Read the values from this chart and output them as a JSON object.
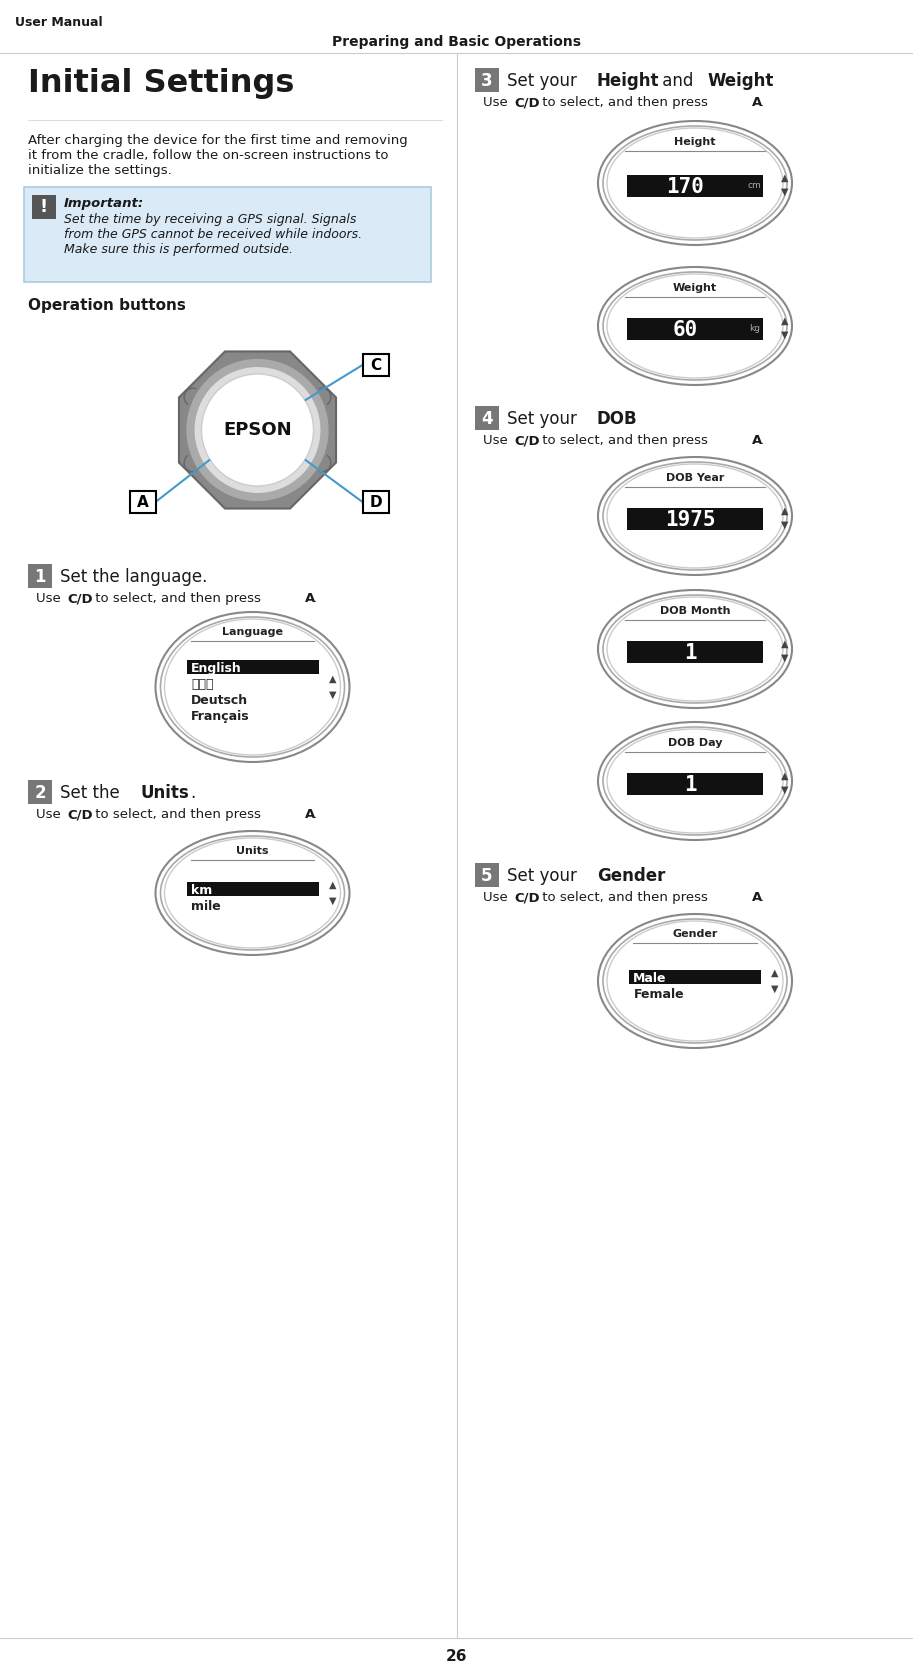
{
  "page_title_left": "User Manual",
  "page_title_center": "Preparing and Basic Operations",
  "page_number": "26",
  "section_title": "Initial Settings",
  "intro_lines": [
    "After charging the device for the first time and removing",
    "it from the cradle, follow the on-screen instructions to",
    "initialize the settings."
  ],
  "important_title": "Important:",
  "important_lines": [
    "Set the time by receiving a GPS signal. Signals",
    "from the GPS cannot be received while indoors.",
    "Make sure this is performed outside."
  ],
  "op_buttons_title": "Operation buttons",
  "step1_title": "Set the language.",
  "step1_title_bold_words": [],
  "step1_screen_label": "Language",
  "step1_items": [
    "English",
    "日本語",
    "Deutsch",
    "Français"
  ],
  "step1_hl": 0,
  "step2_title_parts": [
    [
      "Set the ",
      false
    ],
    [
      "Units",
      true
    ],
    [
      ".",
      false
    ]
  ],
  "step2_screen_label": "Units",
  "step2_items": [
    "km",
    "mile"
  ],
  "step2_hl": 0,
  "step3_title_parts": [
    [
      "Set your ",
      false
    ],
    [
      "Height",
      true
    ],
    [
      " and ",
      false
    ],
    [
      "Weight",
      true
    ],
    [
      ".",
      false
    ]
  ],
  "step3_screens": [
    {
      "label": "Height",
      "value": "170",
      "unit": "cm"
    },
    {
      "label": "Weight",
      "value": "60",
      "unit": "kg"
    }
  ],
  "step4_title_parts": [
    [
      "Set your ",
      false
    ],
    [
      "DOB",
      true
    ],
    [
      ".",
      false
    ]
  ],
  "step4_screens": [
    {
      "label": "DOB Year",
      "value": "1975"
    },
    {
      "label": "DOB Month",
      "value": "1"
    },
    {
      "label": "DOB Day",
      "value": "1"
    }
  ],
  "step5_title_parts": [
    [
      "Set your ",
      false
    ],
    [
      "Gender",
      true
    ],
    [
      ".",
      false
    ]
  ],
  "step5_screen_label": "Gender",
  "step5_items": [
    "Male",
    "Female"
  ],
  "step5_hl": 0,
  "body_cd_text_parts": [
    [
      "Use ",
      false
    ],
    [
      "C/D",
      true
    ],
    [
      " to select, and then press ",
      false
    ],
    [
      "A",
      true
    ],
    [
      ".",
      false
    ]
  ],
  "bg_white": "#ffffff",
  "important_bg": "#daeaf7",
  "important_border": "#aaccdd",
  "step_num_bg": "#777777",
  "blue_line": "#4499cc",
  "hl_bg": "#111111",
  "divider": "#cccccc",
  "body_text": "#1a1a1a",
  "screen_label_sep_color": "#888888",
  "oval_outer_ec": "#888888",
  "oval_inner_ec": "#aaaaaa",
  "oval_innermost_ec": "#cccccc"
}
